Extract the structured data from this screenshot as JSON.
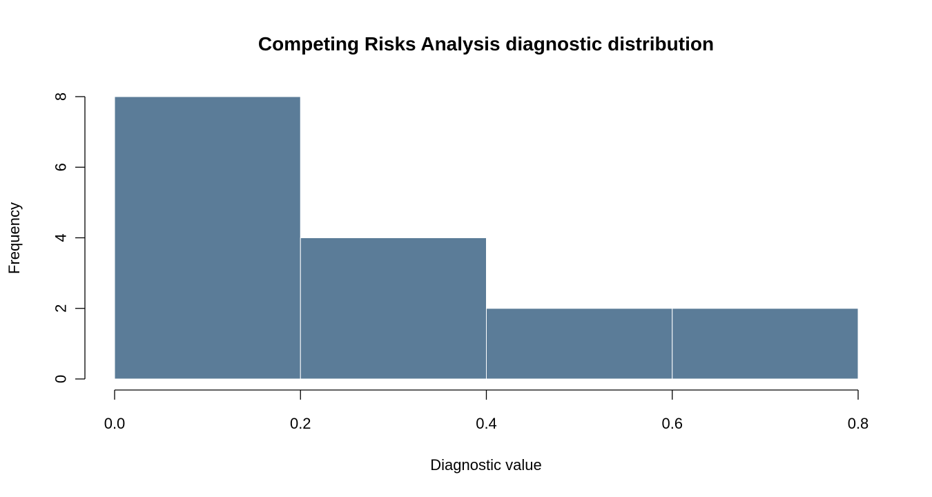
{
  "chart_data": {
    "type": "bar",
    "title": "Competing Risks Analysis diagnostic distribution",
    "xlabel": "Diagnostic value",
    "ylabel": "Frequency",
    "bins": [
      {
        "x0": 0.0,
        "x1": 0.2,
        "count": 8
      },
      {
        "x0": 0.2,
        "x1": 0.4,
        "count": 4
      },
      {
        "x0": 0.4,
        "x1": 0.6,
        "count": 2
      },
      {
        "x0": 0.6,
        "x1": 0.8,
        "count": 2
      }
    ],
    "xlim": [
      0.0,
      0.8
    ],
    "ylim": [
      0,
      8
    ],
    "x_ticks": [
      "0.0",
      "0.2",
      "0.4",
      "0.6",
      "0.8"
    ],
    "y_ticks": [
      "0",
      "2",
      "4",
      "6",
      "8"
    ],
    "bar_color": "#5b7c98",
    "grid": false
  }
}
